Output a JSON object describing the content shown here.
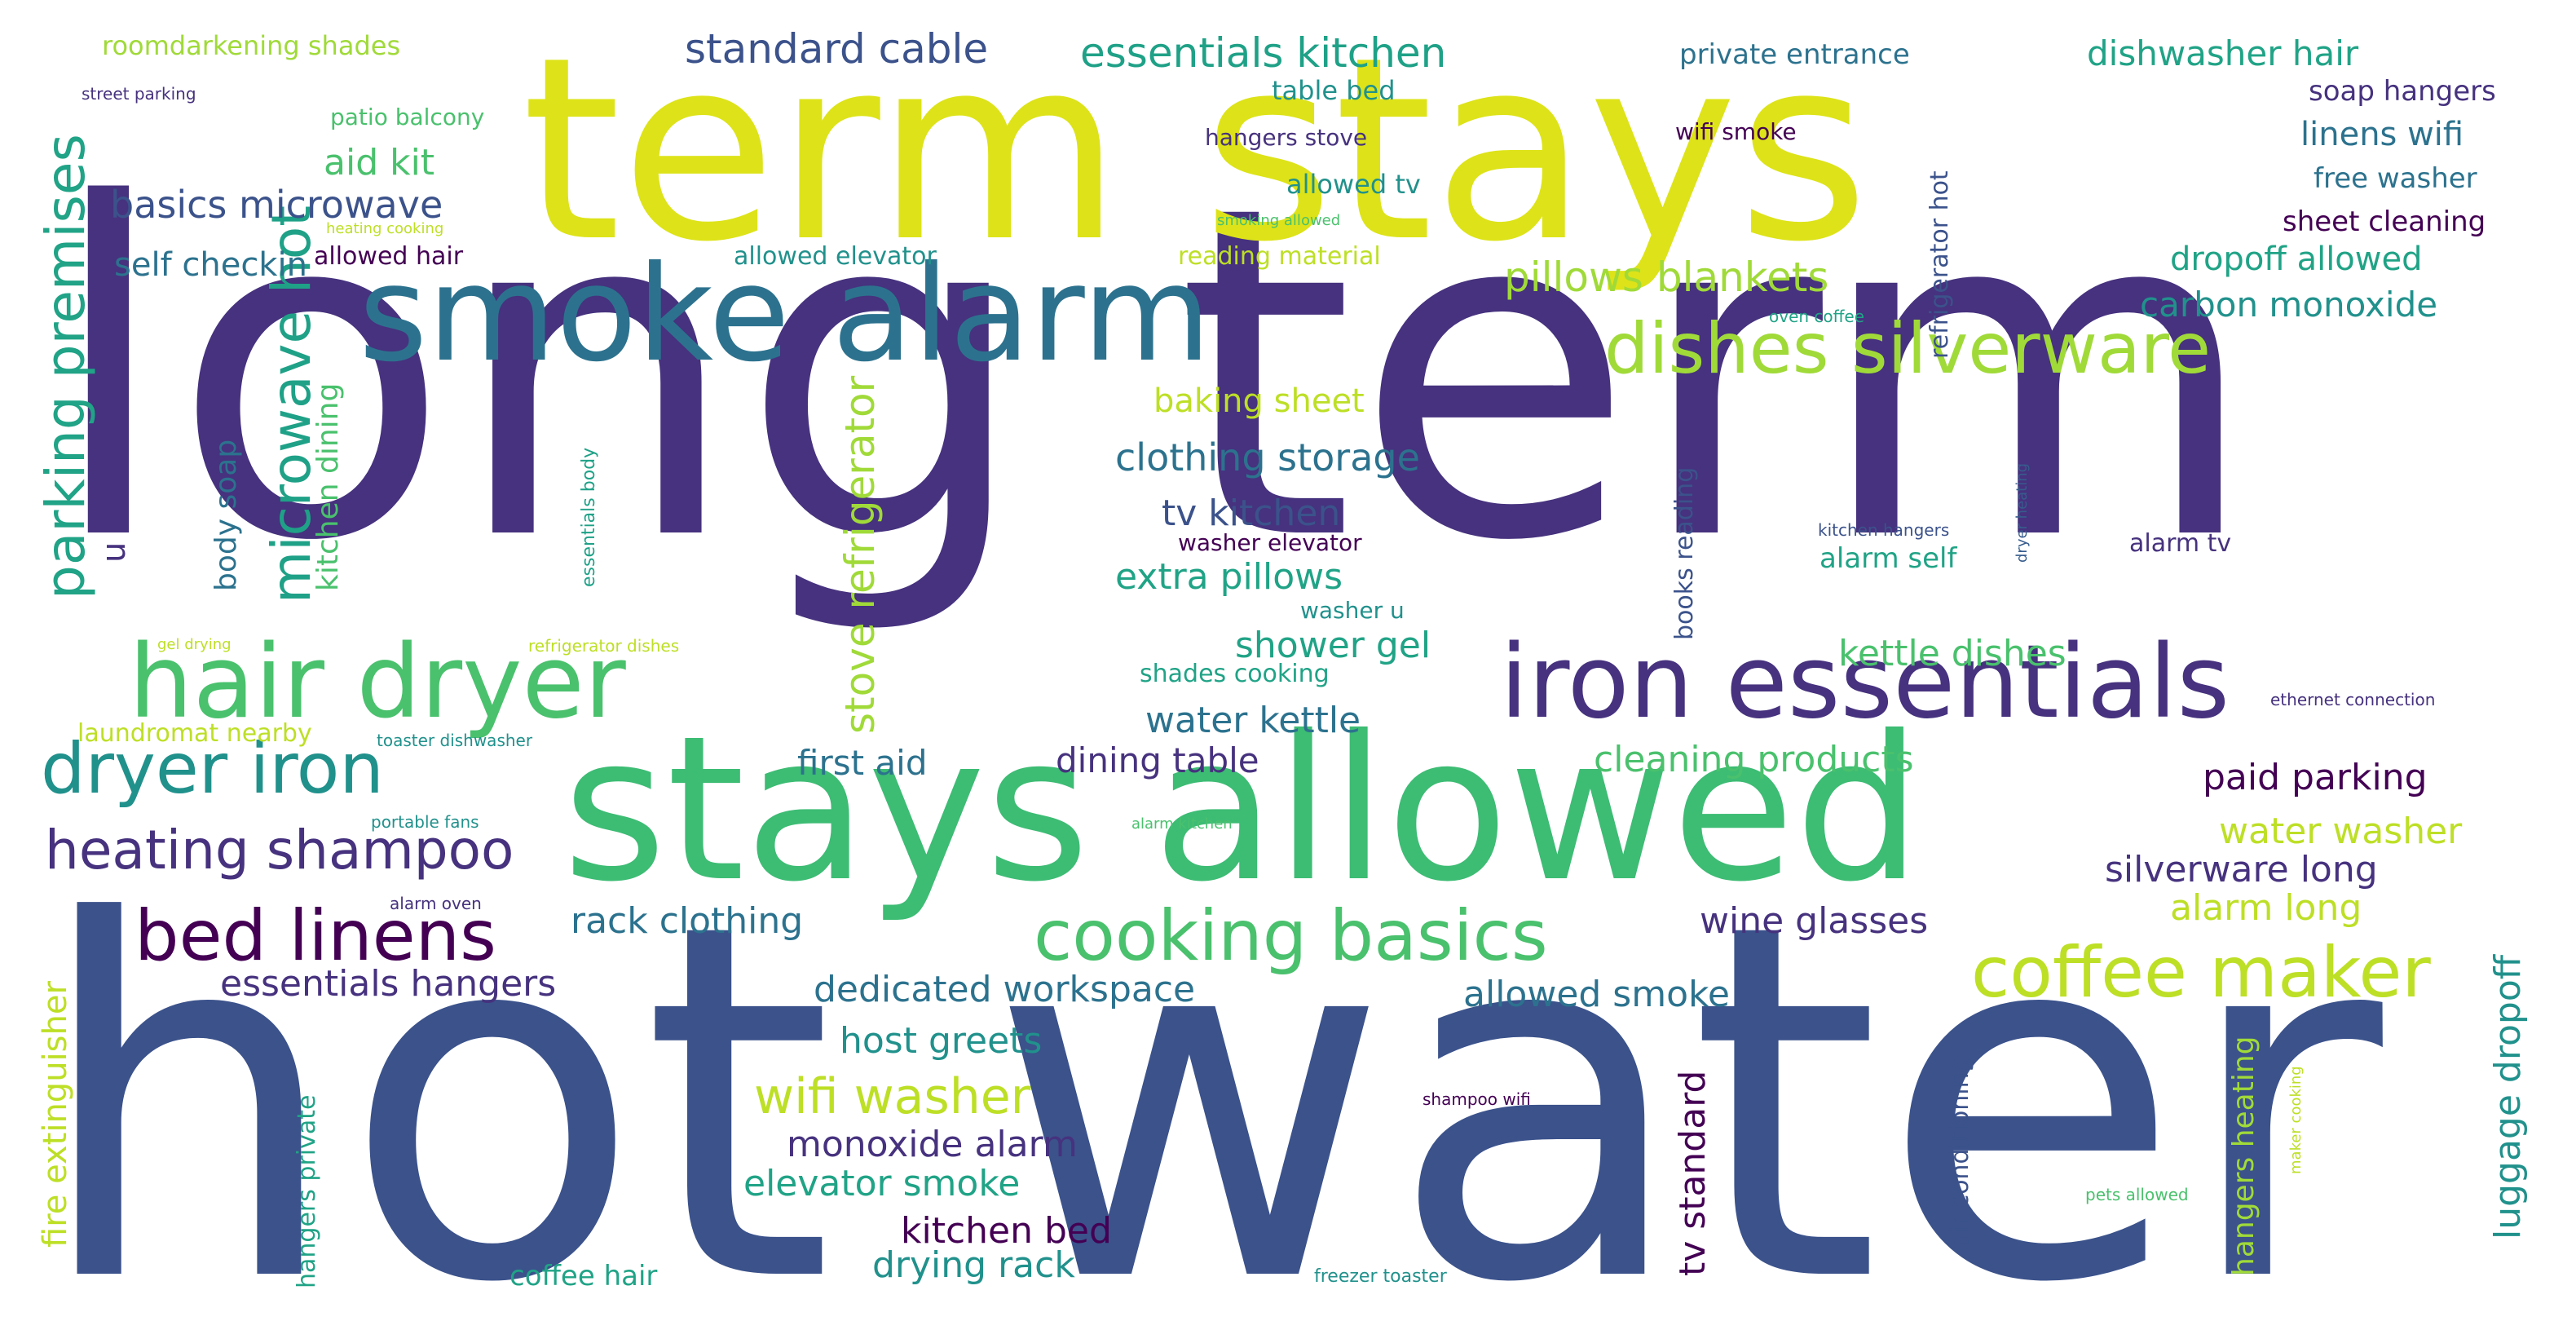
{
  "palette": {
    "indigo": "#46327e",
    "purple": "#440154",
    "blue": "#365c8d",
    "slate": "#3b528b",
    "teal": "#21918c",
    "tealblue": "#277f8e",
    "cyan": "#1fa187",
    "green": "#4ac16d",
    "lime": "#a0da39",
    "yellow": "#dde318",
    "paleyellow": "#bddf26"
  },
  "words": [
    "long term",
    "hot water",
    "term stays",
    "stays allowed",
    "smoke alarm",
    "hair dryer",
    "iron essentials",
    "dishes silverware",
    "dryer iron",
    "cooking basics",
    "bed linens",
    "coffee maker",
    "heating shampoo",
    "parking premises",
    "microwave hot",
    "stove refrigerator",
    "wifi washer",
    "pillows blankets",
    "clothing storage",
    "essentials kitchen",
    "standard cable",
    "basics microwave",
    "aid kit",
    "u unit",
    "body soap",
    "kitchen dining",
    "self checkin",
    "tv kitchen",
    "extra pillows",
    "shower gel",
    "water kettle",
    "dining table",
    "first aid",
    "cleaning products",
    "kettle dishes",
    "carbon monoxide",
    "dropoff allowed",
    "sheet cleaning",
    "free washer",
    "linens wifi",
    "soap hangers",
    "dishwasher hair",
    "private entrance",
    "wifi smoke",
    "allowed tv",
    "hangers stove",
    "table bed",
    "patio balcony",
    "roomdarkening shades",
    "street parking",
    "heating cooking",
    "smoking allowed",
    "allowed hair",
    "allowed elevator",
    "reading material",
    "baking sheet",
    "oven coffee",
    "refrigerator hot",
    "books reading",
    "essentials body",
    "dryer heating",
    "kitchen hangers",
    "alarm tv",
    "alarm self",
    "washer elevator",
    "washer u",
    "shades cooking",
    "refrigerator dishes",
    "gel drying",
    "laundromat nearby",
    "toaster dishwasher",
    "ethernet connection",
    "paid parking",
    "water washer",
    "silverware long",
    "alarm long",
    "luggage dropoff",
    "wine glasses",
    "rack clothing",
    "essentials hangers",
    "dedicated workspace",
    "allowed smoke",
    "host greets",
    "monoxide alarm",
    "elevator smoke",
    "kitchen bed",
    "drying rack",
    "coffee hair",
    "freezer toaster",
    "hangers private",
    "fire extinguisher",
    "portable fans",
    "alarm kitchen",
    "alarm oven",
    "air conditioning",
    "tv standard",
    "hangers heating",
    "maker cooking",
    "shampoo wifi",
    "pets allowed"
  ]
}
